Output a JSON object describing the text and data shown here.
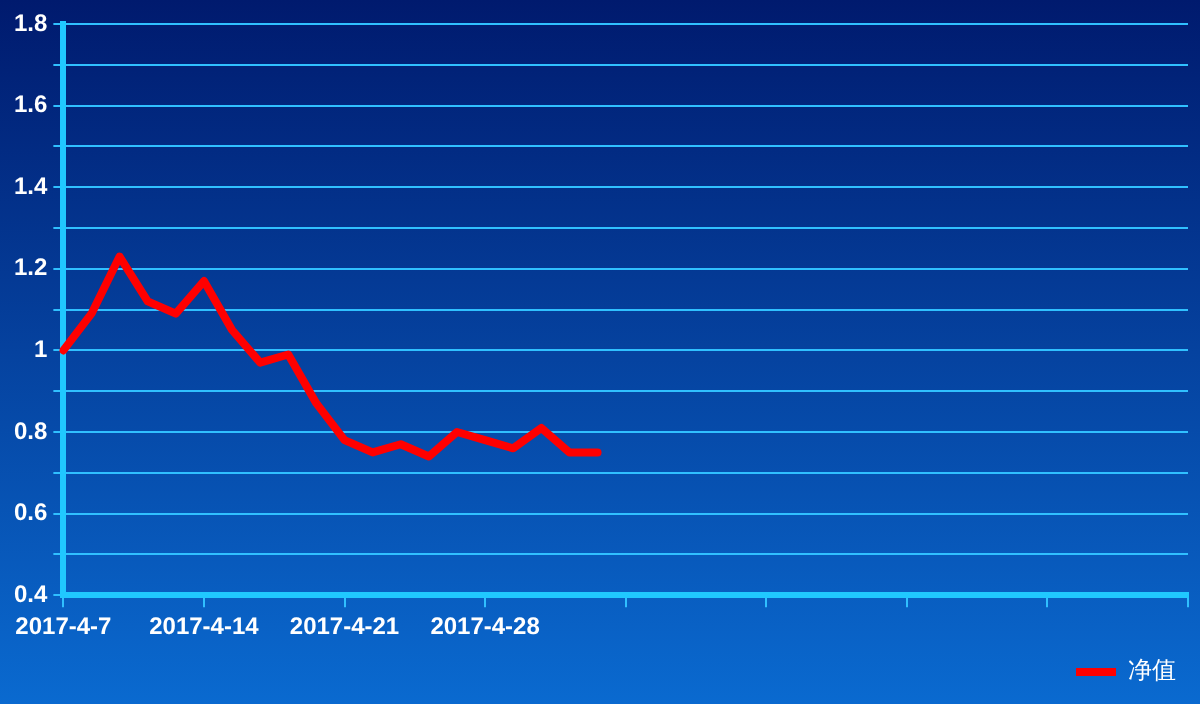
{
  "chart_data": {
    "type": "line",
    "categories": [
      "2017-4-7",
      null,
      null,
      null,
      null,
      "2017-4-14",
      null,
      null,
      null,
      null,
      "2017-4-21",
      null,
      null,
      null,
      null,
      "2017-4-28",
      null,
      null,
      null,
      null,
      null,
      null,
      null,
      null,
      null,
      null,
      null,
      null,
      null,
      null,
      null,
      null,
      null,
      null,
      null,
      null,
      null,
      null,
      null,
      null,
      null
    ],
    "series": [
      {
        "name": "净值",
        "color": "#ff0000",
        "values": [
          1.0,
          1.09,
          1.23,
          1.12,
          1.09,
          1.17,
          1.05,
          0.97,
          0.99,
          0.87,
          0.78,
          0.75,
          0.77,
          0.74,
          0.8,
          0.78,
          0.76,
          0.81,
          0.75,
          0.75,
          null,
          null,
          null,
          null,
          null,
          null,
          null,
          null,
          null,
          null,
          null,
          null,
          null,
          null,
          null,
          null,
          null,
          null,
          null,
          null,
          null
        ]
      }
    ],
    "ylim": [
      0.4,
      1.8
    ],
    "yticks": [
      0.4,
      {
        "value": 0.5,
        "label": null
      },
      0.6,
      {
        "value": 0.7,
        "label": null
      },
      0.8,
      {
        "value": 0.9,
        "label": null
      },
      1,
      {
        "value": 1.1,
        "label": null
      },
      1.2,
      {
        "value": 1.3,
        "label": null
      },
      1.4,
      {
        "value": 1.5,
        "label": null
      },
      1.6,
      {
        "value": 1.7,
        "label": null
      },
      1.8
    ],
    "grid": "y",
    "legend": "bottom right",
    "marker": "none",
    "line_style": "solid"
  }
}
